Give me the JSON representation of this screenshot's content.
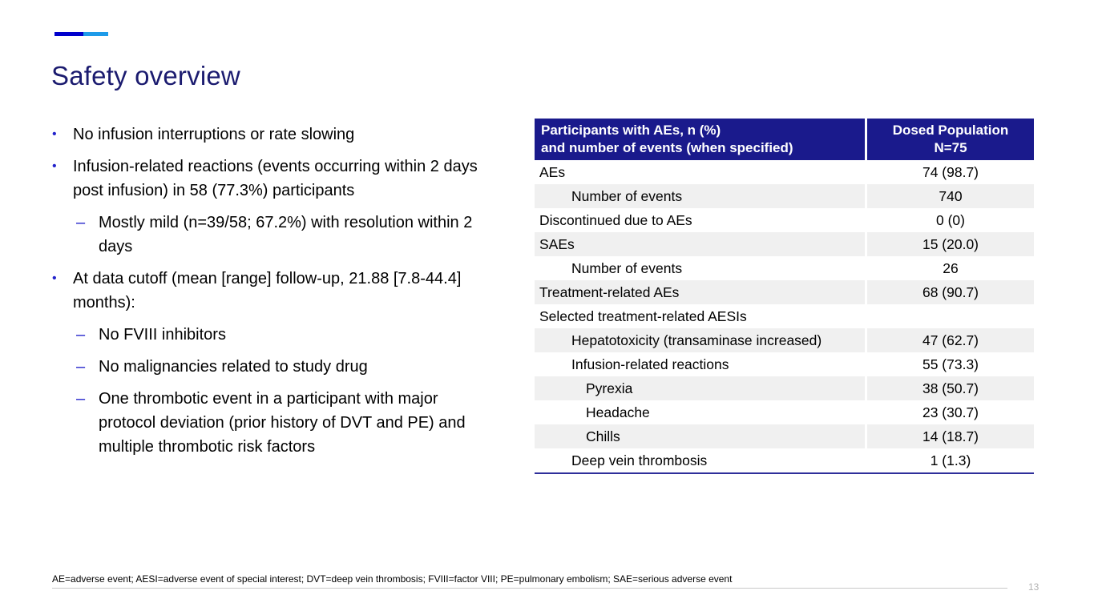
{
  "slide": {
    "title": "Safety overview",
    "page_number": "13",
    "footnote": "AE=adverse event; AESI=adverse event of special interest; DVT=deep vein thrombosis; FVIII=factor VIII; PE=pulmonary embolism; SAE=serious adverse event",
    "colors": {
      "title": "#1b1b6f",
      "accent_dark_blue": "#0000cc",
      "accent_light_blue": "#1e9be9",
      "table_header_bg": "#1a1a8c",
      "row_shade": "#f0f0f0",
      "table_bottom_border": "#2e2e9a",
      "bullet_marker": "#2323cb"
    }
  },
  "bullets": [
    {
      "level": 1,
      "marker": "•",
      "text": "No infusion interruptions or rate slowing"
    },
    {
      "level": 1,
      "marker": "•",
      "text": "Infusion-related reactions (events occurring within 2 days post infusion) in 58 (77.3%) participants"
    },
    {
      "level": 2,
      "marker": "–",
      "text": "Mostly mild (n=39/58; 67.2%) with resolution within 2 days"
    },
    {
      "level": 1,
      "marker": "•",
      "text": "At data cutoff (mean [range] follow-up, 21.88 [7.8-44.4] months):"
    },
    {
      "level": 2,
      "marker": "–",
      "text": "No FVIII inhibitors"
    },
    {
      "level": 2,
      "marker": "–",
      "text": "No malignancies related to study drug"
    },
    {
      "level": 2,
      "marker": "–",
      "text": "One thrombotic event in a participant with major protocol deviation (prior history of DVT and PE) and multiple thrombotic risk factors"
    }
  ],
  "table": {
    "header": {
      "col1": "Participants with AEs, n (%)\nand number of events (when specified)",
      "col2": "Dosed Population\nN=75"
    },
    "rows": [
      {
        "label": "AEs",
        "value": "74 (98.7)",
        "indent": 0,
        "shaded": false
      },
      {
        "label": "Number of events",
        "value": "740",
        "indent": 1,
        "shaded": true
      },
      {
        "label": "Discontinued due to AEs",
        "value": "0 (0)",
        "indent": 0,
        "shaded": false
      },
      {
        "label": "SAEs",
        "value": "15 (20.0)",
        "indent": 0,
        "shaded": true
      },
      {
        "label": "Number of events",
        "value": "26",
        "indent": 1,
        "shaded": false
      },
      {
        "label": "Treatment-related AEs",
        "value": "68 (90.7)",
        "indent": 0,
        "shaded": true
      },
      {
        "label": "Selected treatment-related AESIs",
        "value": "",
        "indent": 0,
        "shaded": false
      },
      {
        "label": "Hepatotoxicity (transaminase increased)",
        "value": "47 (62.7)",
        "indent": 1,
        "shaded": true
      },
      {
        "label": "Infusion-related reactions",
        "value": "55 (73.3)",
        "indent": 1,
        "shaded": false
      },
      {
        "label": "Pyrexia",
        "value": "38 (50.7)",
        "indent": 2,
        "shaded": true
      },
      {
        "label": "Headache",
        "value": "23 (30.7)",
        "indent": 2,
        "shaded": false
      },
      {
        "label": "Chills",
        "value": "14 (18.7)",
        "indent": 2,
        "shaded": true
      },
      {
        "label": "Deep vein thrombosis",
        "value": "1 (1.3)",
        "indent": 1,
        "shaded": false
      }
    ]
  }
}
